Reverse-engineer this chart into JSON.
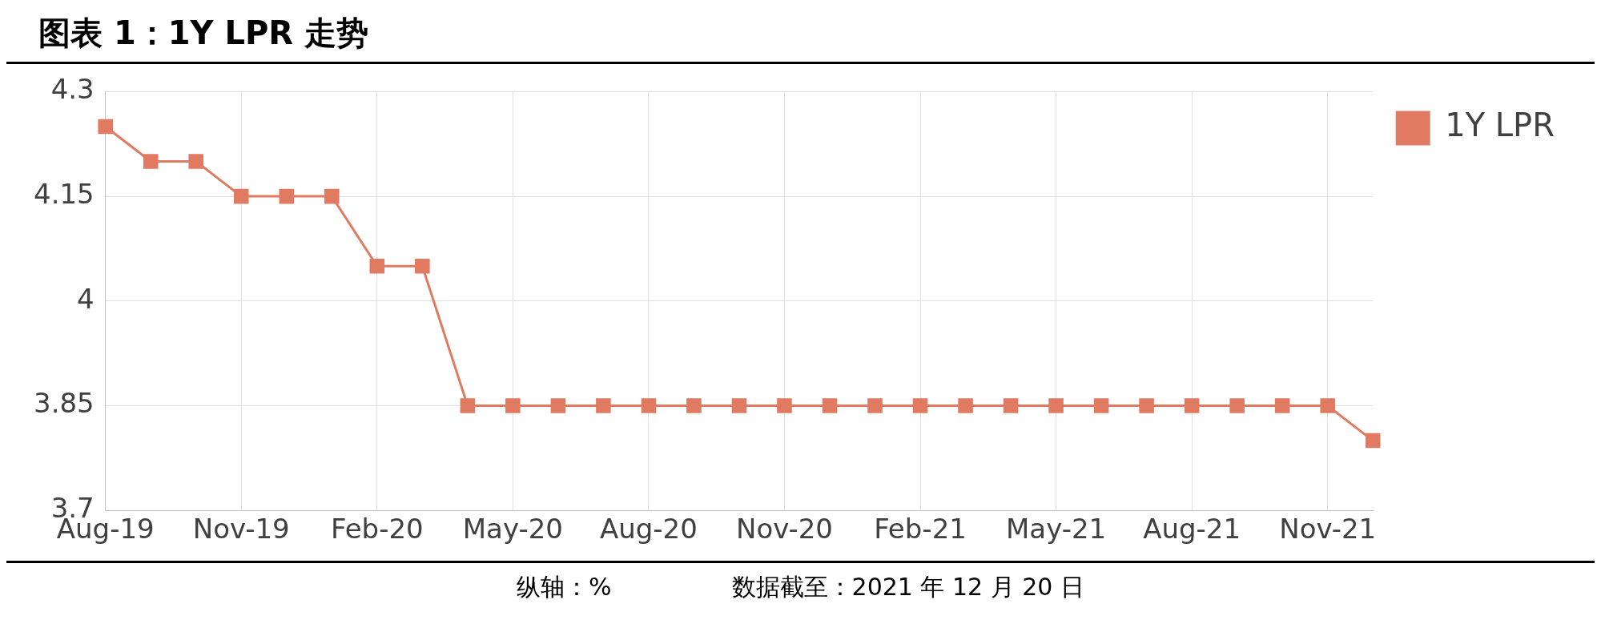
{
  "chart_data": {
    "type": "line",
    "title": "图表 1：1Y LPR 走势",
    "categories": [
      "Aug-19",
      null,
      null,
      "Nov-19",
      null,
      null,
      "Feb-20",
      null,
      null,
      "May-20",
      null,
      null,
      "Aug-20",
      null,
      null,
      "Nov-20",
      null,
      null,
      "Feb-21",
      null,
      null,
      "May-21",
      null,
      null,
      "Aug-21",
      null,
      null,
      "Nov-21",
      null
    ],
    "series": [
      {
        "name": "1Y LPR",
        "color": "#e07b62",
        "values": [
          4.25,
          4.2,
          4.2,
          4.15,
          4.15,
          4.15,
          4.05,
          4.05,
          3.85,
          3.85,
          3.85,
          3.85,
          3.85,
          3.85,
          3.85,
          3.85,
          3.85,
          3.85,
          3.85,
          3.85,
          3.85,
          3.85,
          3.85,
          3.85,
          3.85,
          3.85,
          3.85,
          3.85,
          3.8
        ]
      }
    ],
    "ylim": [
      3.7,
      4.3
    ],
    "yticks": [
      3.7,
      3.85,
      4,
      4.15,
      4.3
    ],
    "grid": true,
    "legend": "top right",
    "marker": "square",
    "line_style": "solid",
    "annotations": [
      "纵轴：%",
      "数据截至：2021 年 12 月 20 日"
    ]
  }
}
